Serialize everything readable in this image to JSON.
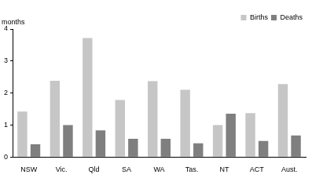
{
  "chart_data": {
    "type": "bar",
    "ylabel": "months",
    "categories": [
      "NSW",
      "Vic.",
      "Qld",
      "SA",
      "WA",
      "Tas.",
      "NT",
      "ACT",
      "Aust."
    ],
    "series": [
      {
        "name": "Births",
        "color": "#c6c6c6",
        "values": [
          1.42,
          2.38,
          3.72,
          1.78,
          2.37,
          2.1,
          1.0,
          1.37,
          2.28
        ]
      },
      {
        "name": "Deaths",
        "color": "#7f7f7f",
        "values": [
          0.4,
          1.0,
          0.83,
          0.57,
          0.57,
          0.43,
          1.35,
          0.5,
          0.67
        ]
      }
    ],
    "ylim": [
      0,
      4
    ],
    "yticks": [
      0,
      1,
      2,
      3,
      4
    ],
    "grid": true,
    "legend": "top-right"
  }
}
